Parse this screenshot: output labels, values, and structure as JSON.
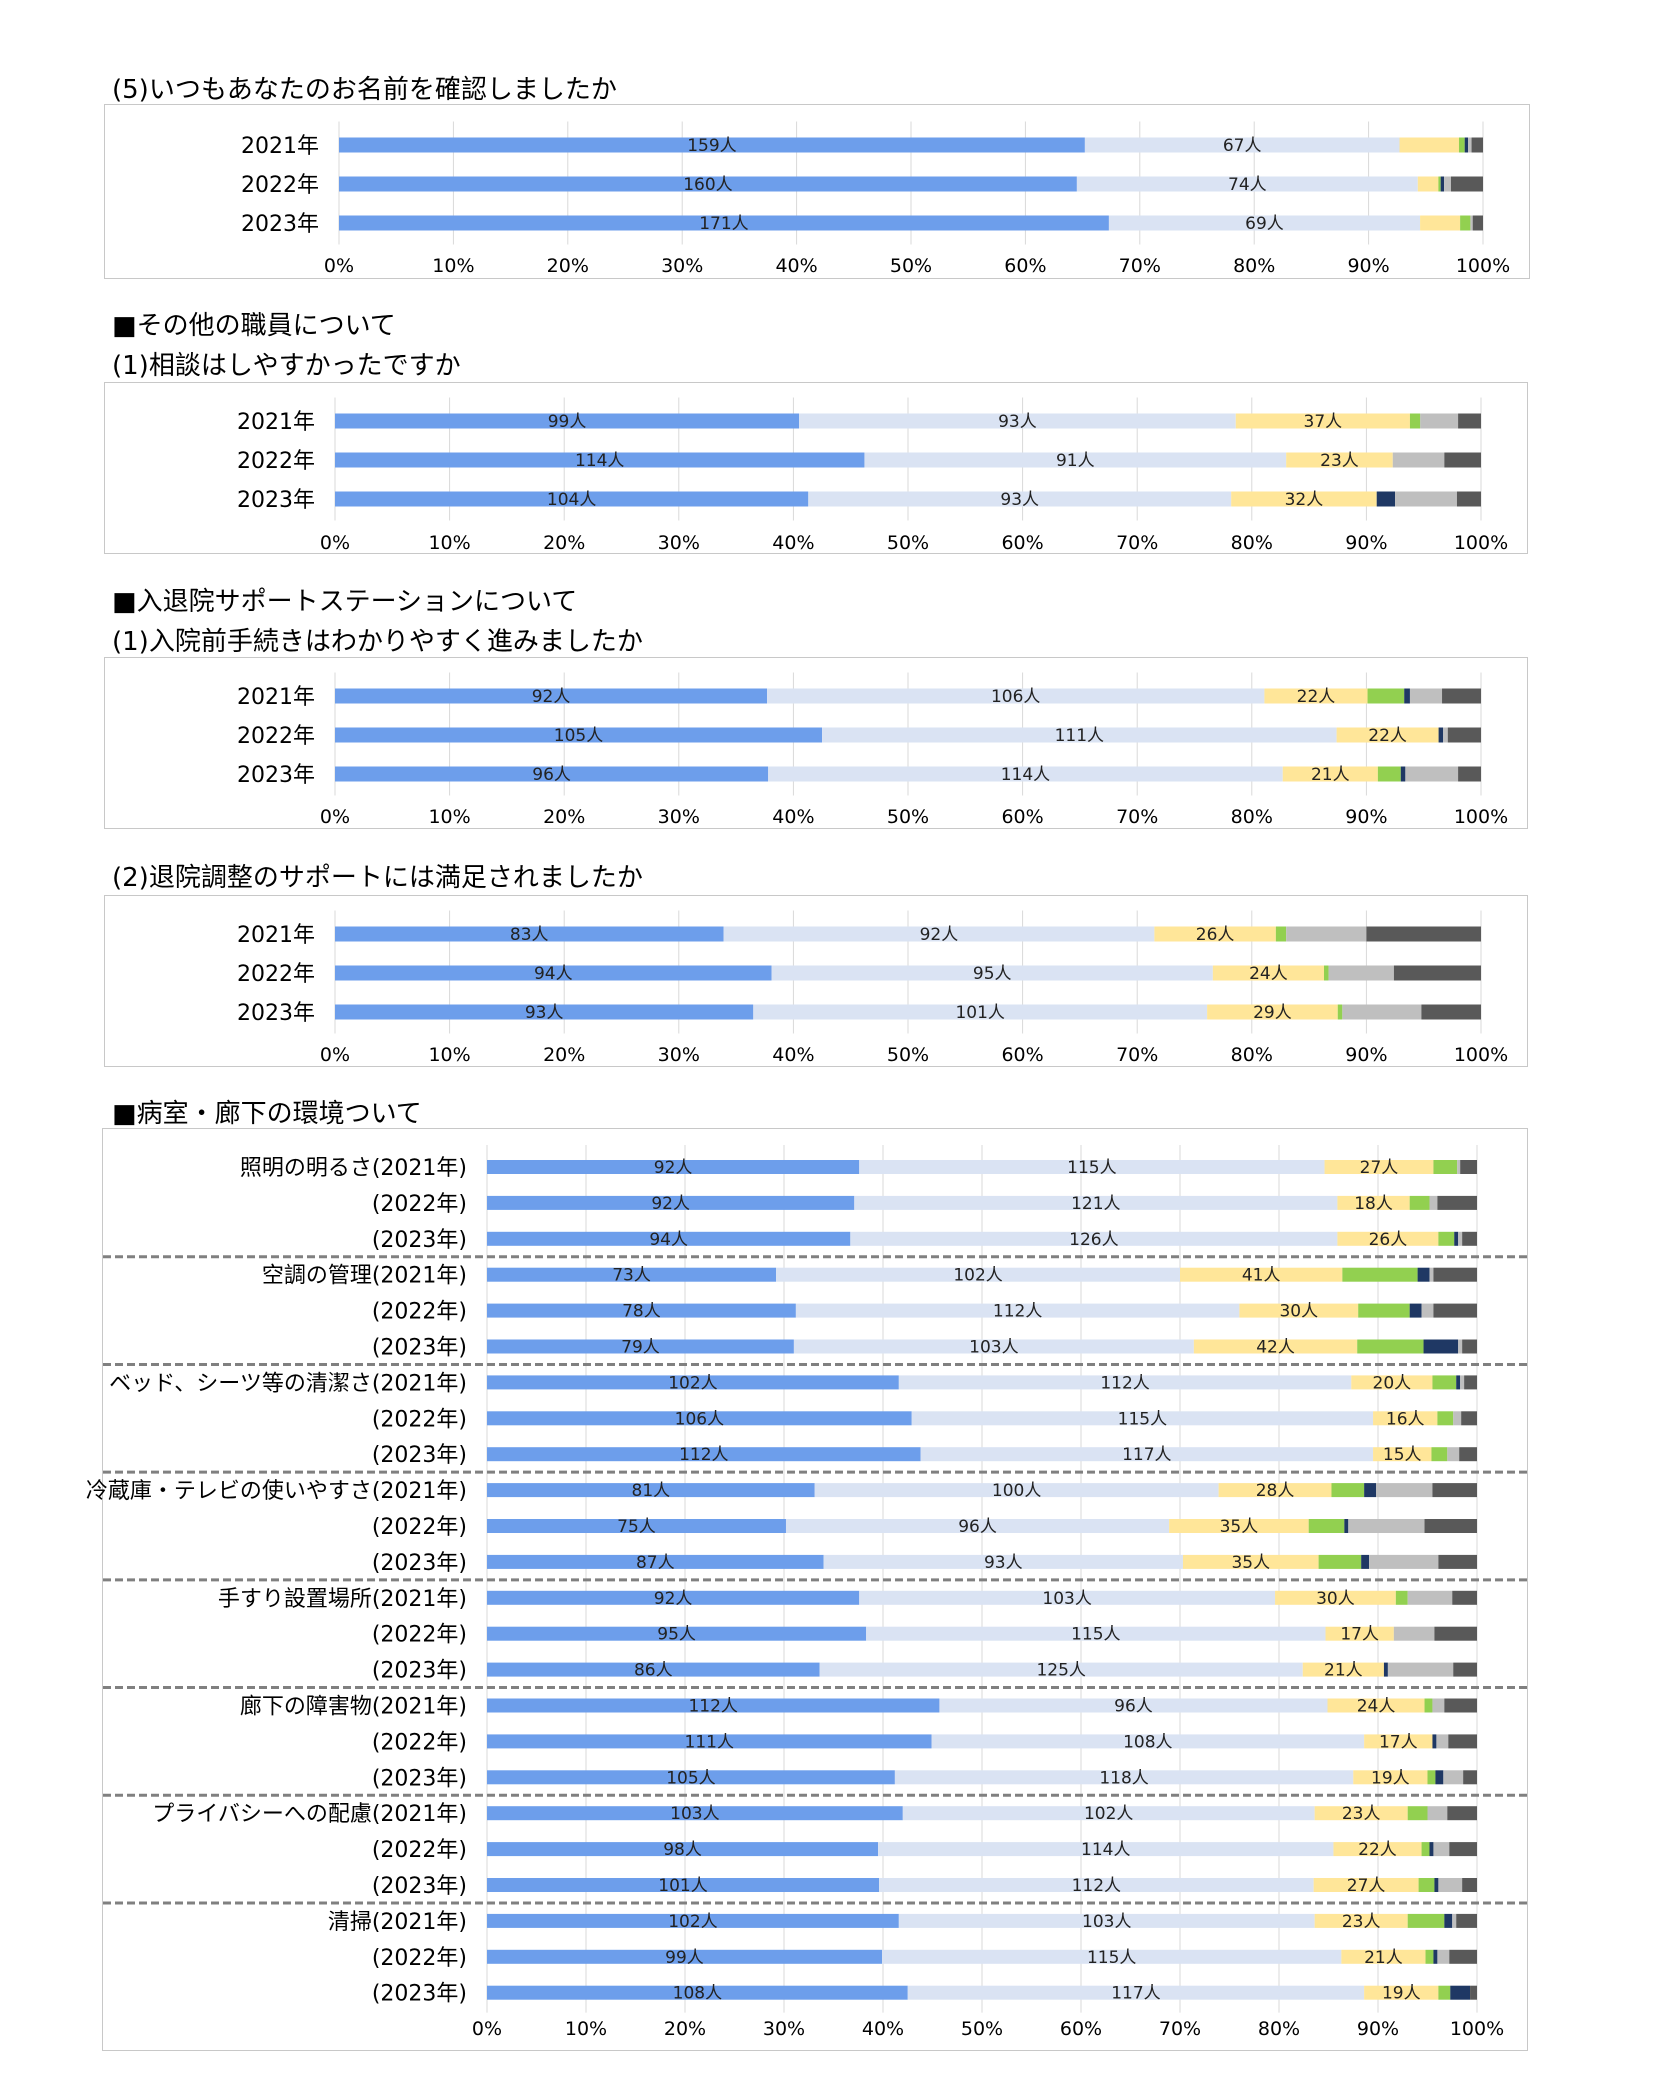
{
  "colors": {
    "c1": "#6d9eeb",
    "c2": "#dae3f3",
    "c3": "#ffe699",
    "c4": "#92d050",
    "c5": "#1f3864",
    "c6": "#bfbfbf",
    "c7": "#595959",
    "grid": "#d9d9d9",
    "separator": "#808080"
  },
  "headings": {
    "h1": "(5)いつもあなたのお名前を確認しましたか",
    "h2": "■その他の職員について",
    "h3": "(1)相談はしやすかったですか",
    "h4": "■入退院サポートステーションについて",
    "h5": "(1)入院前手続きはわかりやすく進みましたか",
    "h6": "(2)退院調整のサポートには満足されましたか",
    "h7": "■病室・廊下の環境ついて"
  },
  "chart_data": [
    {
      "type": "bar",
      "orientation": "horizontal",
      "stacked": "percent",
      "title": "(5)いつもあなたのお名前を確認しましたか",
      "categories": [
        "2021年",
        "2022年",
        "2023年"
      ],
      "xlim": [
        0,
        100
      ],
      "xticks": [
        "0%",
        "10%",
        "20%",
        "30%",
        "40%",
        "50%",
        "60%",
        "70%",
        "80%",
        "90%",
        "100%"
      ],
      "rows": [
        {
          "segments": [
            65.2,
            27.5,
            5.2,
            0.5,
            0.3,
            0.3,
            1.0
          ],
          "labels": [
            "159人",
            "67人",
            "",
            "",
            "",
            "",
            ""
          ]
        },
        {
          "segments": [
            64.5,
            29.8,
            1.8,
            0.2,
            0.3,
            0.6,
            2.8
          ],
          "labels": [
            "160人",
            "74人",
            "",
            "",
            "",
            "",
            ""
          ]
        },
        {
          "segments": [
            67.3,
            27.2,
            3.5,
            0.9,
            0.0,
            0.2,
            0.9
          ],
          "labels": [
            "171人",
            "69人",
            "",
            "",
            "",
            "",
            ""
          ]
        }
      ]
    },
    {
      "type": "bar",
      "orientation": "horizontal",
      "stacked": "percent",
      "title": "(1)相談はしやすかったですか",
      "categories": [
        "2021年",
        "2022年",
        "2023年"
      ],
      "xlim": [
        0,
        100
      ],
      "xticks": [
        "0%",
        "10%",
        "20%",
        "30%",
        "40%",
        "50%",
        "60%",
        "70%",
        "80%",
        "90%",
        "100%"
      ],
      "rows": [
        {
          "segments": [
            40.5,
            38.1,
            15.2,
            0.9,
            0.0,
            3.3,
            2.0
          ],
          "labels": [
            "99人",
            "93人",
            "37人",
            "",
            "",
            "",
            ""
          ]
        },
        {
          "segments": [
            46.2,
            36.8,
            9.3,
            0.0,
            0.0,
            4.5,
            3.2
          ],
          "labels": [
            "114人",
            "91人",
            "23人",
            "",
            "",
            "",
            ""
          ]
        },
        {
          "segments": [
            41.3,
            36.9,
            12.7,
            0.0,
            1.6,
            5.4,
            2.1
          ],
          "labels": [
            "104人",
            "93人",
            "32人",
            "",
            "",
            "",
            ""
          ]
        }
      ]
    },
    {
      "type": "bar",
      "orientation": "horizontal",
      "stacked": "percent",
      "title": "(1)入院前手続きはわかりやすく進みましたか",
      "categories": [
        "2021年",
        "2022年",
        "2023年"
      ],
      "xlim": [
        0,
        100
      ],
      "xticks": [
        "0%",
        "10%",
        "20%",
        "30%",
        "40%",
        "50%",
        "60%",
        "70%",
        "80%",
        "90%",
        "100%"
      ],
      "rows": [
        {
          "segments": [
            37.7,
            43.4,
            9.0,
            3.2,
            0.5,
            2.8,
            3.4
          ],
          "labels": [
            "92人",
            "106人",
            "22人",
            "",
            "",
            "",
            ""
          ]
        },
        {
          "segments": [
            42.5,
            44.9,
            8.9,
            0.0,
            0.4,
            0.4,
            2.9
          ],
          "labels": [
            "105人",
            "111人",
            "22人",
            "",
            "",
            "",
            ""
          ]
        },
        {
          "segments": [
            37.8,
            44.9,
            8.3,
            2.0,
            0.4,
            4.6,
            2.0
          ],
          "labels": [
            "96人",
            "114人",
            "21人",
            "",
            "",
            "",
            ""
          ]
        }
      ]
    },
    {
      "type": "bar",
      "orientation": "horizontal",
      "stacked": "percent",
      "title": "(2)退院調整のサポートには満足されましたか",
      "categories": [
        "2021年",
        "2022年",
        "2023年"
      ],
      "xlim": [
        0,
        100
      ],
      "xticks": [
        "0%",
        "10%",
        "20%",
        "30%",
        "40%",
        "50%",
        "60%",
        "70%",
        "80%",
        "90%",
        "100%"
      ],
      "rows": [
        {
          "segments": [
            33.9,
            37.6,
            10.6,
            0.9,
            0.0,
            7.0,
            10.0
          ],
          "labels": [
            "83人",
            "92人",
            "26人",
            "",
            "",
            "",
            ""
          ]
        },
        {
          "segments": [
            38.1,
            38.5,
            9.7,
            0.4,
            0.0,
            5.7,
            7.6
          ],
          "labels": [
            "94人",
            "95人",
            "24人",
            "",
            "",
            "",
            ""
          ]
        },
        {
          "segments": [
            36.5,
            39.6,
            11.4,
            0.4,
            0.0,
            6.9,
            5.2
          ],
          "labels": [
            "93人",
            "101人",
            "29人",
            "",
            "",
            "",
            ""
          ]
        }
      ]
    },
    {
      "type": "bar",
      "orientation": "horizontal",
      "stacked": "percent",
      "title": "■病室・廊下の環境ついて",
      "categories": [
        "照明の明るさ(2021年)",
        "(2022年)",
        "(2023年)",
        "空調の管理(2021年)",
        "(2022年)",
        "(2023年)",
        "ベッド、シーツ等の清潔さ(2021年)",
        "(2022年)",
        "(2023年)",
        "冷蔵庫・テレビの使いやすさ(2021年)",
        "(2022年)",
        "(2023年)",
        "手すり設置場所(2021年)",
        "(2022年)",
        "(2023年)",
        "廊下の障害物(2021年)",
        "(2022年)",
        "(2023年)",
        "プライバシーへの配慮(2021年)",
        "(2022年)",
        "(2023年)",
        "清掃(2021年)",
        "(2022年)",
        "(2023年)"
      ],
      "group_size": 3,
      "xlim": [
        0,
        100
      ],
      "xticks": [
        "0%",
        "10%",
        "20%",
        "30%",
        "40%",
        "50%",
        "60%",
        "70%",
        "80%",
        "90%",
        "100%"
      ],
      "rows": [
        {
          "segments": [
            37.6,
            47.0,
            11.0,
            2.4,
            0.0,
            0.3,
            1.7
          ],
          "labels": [
            "92人",
            "115人",
            "27人",
            "",
            "",
            "",
            ""
          ]
        },
        {
          "segments": [
            37.1,
            48.8,
            7.3,
            2.0,
            0.0,
            0.8,
            4.0
          ],
          "labels": [
            "92人",
            "121人",
            "18人",
            "",
            "",
            "",
            ""
          ]
        },
        {
          "segments": [
            36.7,
            49.2,
            10.2,
            1.6,
            0.4,
            0.4,
            1.5
          ],
          "labels": [
            "94人",
            "126人",
            "26人",
            "",
            "",
            "",
            ""
          ]
        },
        {
          "segments": [
            29.2,
            40.8,
            16.4,
            7.6,
            1.2,
            0.4,
            4.4
          ],
          "labels": [
            "73人",
            "102人",
            "41人",
            "",
            "",
            "",
            ""
          ]
        },
        {
          "segments": [
            31.2,
            44.8,
            12.0,
            5.2,
            1.2,
            1.2,
            4.4
          ],
          "labels": [
            "78人",
            "112人",
            "30人",
            "",
            "",
            "",
            ""
          ]
        },
        {
          "segments": [
            31.0,
            40.4,
            16.5,
            6.7,
            3.5,
            0.4,
            1.5
          ],
          "labels": [
            "79人",
            "103人",
            "42人",
            "",
            "",
            "",
            ""
          ]
        },
        {
          "segments": [
            41.6,
            45.7,
            8.2,
            2.4,
            0.4,
            0.4,
            1.3
          ],
          "labels": [
            "102人",
            "112人",
            "20人",
            "",
            "",
            "",
            ""
          ]
        },
        {
          "segments": [
            42.9,
            46.6,
            6.5,
            1.6,
            0.0,
            0.8,
            1.6
          ],
          "labels": [
            "106人",
            "115人",
            "16人",
            "",
            "",
            "",
            ""
          ]
        },
        {
          "segments": [
            43.8,
            45.7,
            5.9,
            1.6,
            0.0,
            1.2,
            1.8
          ],
          "labels": [
            "112人",
            "117人",
            "15人",
            "",
            "",
            "",
            ""
          ]
        },
        {
          "segments": [
            33.1,
            40.8,
            11.4,
            3.3,
            1.2,
            5.7,
            4.5
          ],
          "labels": [
            "81人",
            "100人",
            "28人",
            "",
            "",
            "",
            ""
          ]
        },
        {
          "segments": [
            30.2,
            38.7,
            14.1,
            3.6,
            0.4,
            7.7,
            5.3
          ],
          "labels": [
            "75人",
            "96人",
            "35人",
            "",
            "",
            "",
            ""
          ]
        },
        {
          "segments": [
            34.0,
            36.3,
            13.7,
            4.3,
            0.8,
            7.0,
            3.9
          ],
          "labels": [
            "87人",
            "93人",
            "35人",
            "",
            "",
            "",
            ""
          ]
        },
        {
          "segments": [
            37.6,
            42.0,
            12.2,
            1.2,
            0.0,
            4.5,
            2.5
          ],
          "labels": [
            "92人",
            "103人",
            "30人",
            "",
            "",
            "",
            ""
          ]
        },
        {
          "segments": [
            38.3,
            46.4,
            6.9,
            0.0,
            0.0,
            4.1,
            4.3
          ],
          "labels": [
            "95人",
            "115人",
            "17人",
            "",
            "",
            "",
            ""
          ]
        },
        {
          "segments": [
            33.6,
            48.8,
            8.2,
            0.0,
            0.4,
            6.6,
            2.4
          ],
          "labels": [
            "86人",
            "125人",
            "21人",
            "",
            "",
            "",
            ""
          ]
        },
        {
          "segments": [
            45.7,
            39.2,
            9.8,
            0.8,
            0.0,
            1.2,
            3.3
          ],
          "labels": [
            "112人",
            "96人",
            "24人",
            "",
            "",
            "",
            ""
          ]
        },
        {
          "segments": [
            44.9,
            43.7,
            6.9,
            0.0,
            0.4,
            1.2,
            2.9
          ],
          "labels": [
            "111人",
            "108人",
            "17人",
            "",
            "",
            "",
            ""
          ]
        },
        {
          "segments": [
            41.2,
            46.3,
            7.5,
            0.8,
            0.8,
            2.0,
            1.4
          ],
          "labels": [
            "105人",
            "118人",
            "19人",
            "",
            "",
            "",
            ""
          ]
        },
        {
          "segments": [
            42.0,
            41.6,
            9.4,
            2.0,
            0.0,
            2.0,
            3.0
          ],
          "labels": [
            "103人",
            "102人",
            "23人",
            "",
            "",
            "",
            ""
          ]
        },
        {
          "segments": [
            39.5,
            46.0,
            8.9,
            0.8,
            0.4,
            1.6,
            2.8
          ],
          "labels": [
            "98人",
            "114人",
            "22人",
            "",
            "",
            "",
            ""
          ]
        },
        {
          "segments": [
            39.6,
            43.9,
            10.6,
            1.6,
            0.4,
            2.4,
            1.5
          ],
          "labels": [
            "101人",
            "112人",
            "27人",
            "",
            "",
            "",
            ""
          ]
        },
        {
          "segments": [
            41.6,
            42.0,
            9.4,
            3.7,
            0.8,
            0.4,
            2.1
          ],
          "labels": [
            "102人",
            "103人",
            "23人",
            "",
            "",
            "",
            ""
          ]
        },
        {
          "segments": [
            39.9,
            46.4,
            8.5,
            0.8,
            0.4,
            1.2,
            2.8
          ],
          "labels": [
            "99人",
            "115人",
            "21人",
            "",
            "",
            "",
            ""
          ]
        },
        {
          "segments": [
            42.5,
            46.1,
            7.5,
            1.2,
            2.0,
            0.0,
            0.7
          ],
          "labels": [
            "108人",
            "117人",
            "19人",
            "",
            "",
            "",
            ""
          ]
        }
      ]
    }
  ]
}
